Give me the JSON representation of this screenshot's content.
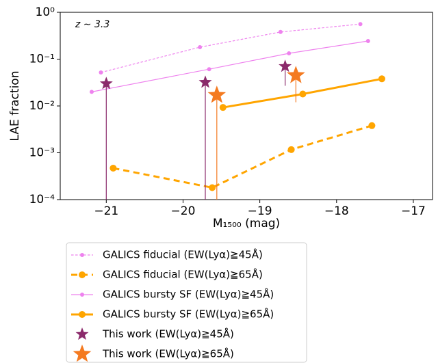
{
  "chart_data": {
    "type": "line",
    "yscale": "log",
    "ylabel": "LAE fraction",
    "xlabel": "M₁₅₀₀ (mag)",
    "annotation": "z ∼ 3.3",
    "xlim": [
      -21.6,
      -16.75
    ],
    "xticks": [
      {
        "value": -21,
        "label": "−21"
      },
      {
        "value": -20,
        "label": "−20"
      },
      {
        "value": -19,
        "label": "−19"
      },
      {
        "value": -18,
        "label": "−18"
      },
      {
        "value": -17,
        "label": "−17"
      }
    ],
    "ylim": [
      0.0001,
      1
    ],
    "yticks": [
      {
        "value": 0.0001,
        "label": "10⁻⁴"
      },
      {
        "value": 0.001,
        "label": "10⁻³"
      },
      {
        "value": 0.01,
        "label": "10⁻²"
      },
      {
        "value": 0.1,
        "label": "10⁻¹"
      },
      {
        "value": 1,
        "label": "10⁰"
      }
    ],
    "series": [
      {
        "name": "GALICS fiducial (EW(Lyα)≧45Å)",
        "color": "#ee82ee",
        "linestyle": "dashed",
        "linewidth": 1.2,
        "marker": "circle",
        "markersize": 3,
        "x": [
          -21.07,
          -19.78,
          -18.73,
          -17.69
        ],
        "values": [
          0.052,
          0.18,
          0.38,
          0.56
        ]
      },
      {
        "name": "GALICS fiducial (EW(Lyα)≧65Å)",
        "color": "#ffa500",
        "linestyle": "dashed",
        "linewidth": 3,
        "marker": "circle",
        "markersize": 5,
        "x": [
          -20.91,
          -19.62,
          -18.59,
          -17.54
        ],
        "values": [
          0.00047,
          0.00018,
          0.00117,
          0.0038
        ]
      },
      {
        "name": "GALICS bursty SF (EW(Lyα)≧45Å)",
        "color": "#ee82ee",
        "linestyle": "solid",
        "linewidth": 1.2,
        "marker": "circle",
        "markersize": 3,
        "x": [
          -21.19,
          -19.66,
          -18.62,
          -17.59
        ],
        "values": [
          0.02,
          0.061,
          0.133,
          0.244
        ]
      },
      {
        "name": "GALICS bursty SF (EW(Lyα)≧65Å)",
        "color": "#ffa500",
        "linestyle": "solid",
        "linewidth": 3,
        "marker": "circle",
        "markersize": 5,
        "x": [
          -19.48,
          -18.44,
          -17.41
        ],
        "values": [
          0.0093,
          0.018,
          0.038
        ]
      },
      {
        "name": "This work (EW(Lyα)≧45Å)",
        "color": "#8b2a6b",
        "linestyle": "none",
        "marker": "star",
        "markersize": 10,
        "x": [
          -21.0,
          -19.71,
          -18.67
        ],
        "values": [
          0.03,
          0.032,
          0.07
        ],
        "lower": [
          0,
          0,
          0.027
        ]
      },
      {
        "name": "This work (EW(Lyα)≧65Å)",
        "color": "#f47a20",
        "linestyle": "none",
        "marker": "star",
        "markersize": 14,
        "x": [
          -19.56,
          -18.53
        ],
        "values": [
          0.017,
          0.045
        ],
        "lower": [
          0,
          0.012
        ]
      }
    ]
  }
}
